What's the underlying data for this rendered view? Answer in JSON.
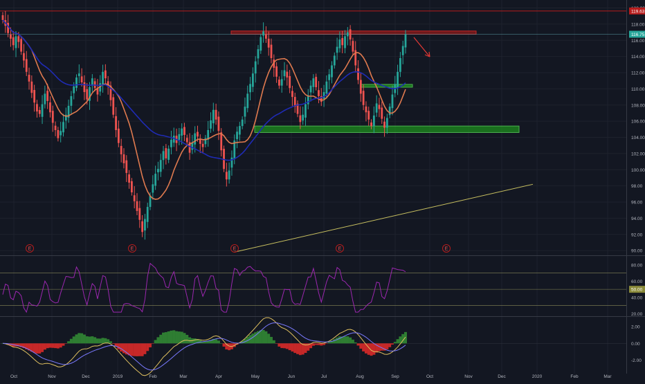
{
  "colors": {
    "background": "#131722",
    "grid": "#1e222d",
    "up": "#26a69a",
    "down": "#ef5350",
    "ma_short": "#e07a4f",
    "ma_long": "#1f2bb5",
    "rsi": "#9c27b0",
    "resistance_fill": "#8b1a1a",
    "support_fill": "#1e8e1e",
    "trendline": "#c8c060",
    "resistance_line": "#b71c1c",
    "arrow": "#e53935",
    "macd_line": "#e0c060",
    "signal_line": "#7a7aff",
    "hist_pos": "#2e7d32",
    "hist_neg": "#c62828"
  },
  "price_badges": {
    "top_label": "119.63",
    "last_label": "116.75"
  },
  "earnings_marker": "E",
  "chart_data": [
    {
      "type": "candlestick",
      "x_axis_labels": [
        "Oct",
        "Nov",
        "Dec",
        "2019",
        "Feb",
        "Mar",
        "Apr",
        "May",
        "Jun",
        "Jul",
        "Aug",
        "Sep",
        "Oct",
        "Nov",
        "Dec",
        "2020",
        "Feb",
        "Mar"
      ],
      "y_ticks": [
        "90.00",
        "92.00",
        "94.00",
        "96.00",
        "98.00",
        "100.00",
        "102.00",
        "104.00",
        "106.00",
        "108.00",
        "110.00",
        "112.00",
        "114.00",
        "116.00",
        "118.00",
        "120.00"
      ],
      "ylim": [
        89.5,
        120.3
      ],
      "resistance_level": 119.63,
      "last_price": 116.75,
      "resistance_zone": [
        116.75,
        117.15
      ],
      "support_zone_lower": [
        104.6,
        105.4
      ],
      "support_zone_upper": [
        110.2,
        110.55
      ],
      "trendline": [
        [
          "Apr 2019",
          89.8
        ],
        [
          "Dec 2019",
          98.2
        ]
      ],
      "closes": [
        118.5,
        117.8,
        116.9,
        116.2,
        115.4,
        116.5,
        115.8,
        114.6,
        113.5,
        112.1,
        110.9,
        109.5,
        108.3,
        107.2,
        106.9,
        108.1,
        109.4,
        108.5,
        107.1,
        105.8,
        104.9,
        103.9,
        104.8,
        105.9,
        106.8,
        107.9,
        109.1,
        110.3,
        111.4,
        111.9,
        110.8,
        109.6,
        108.7,
        110.2,
        111.3,
        110.1,
        109.3,
        110.7,
        112.1,
        111.3,
        110.4,
        108.6,
        106.8,
        104.9,
        103.3,
        101.9,
        100.8,
        99.6,
        98.4,
        97.2,
        96.1,
        94.9,
        93.8,
        92.3,
        93.9,
        95.4,
        96.8,
        98.2,
        99.5,
        100.1,
        101.2,
        102.3,
        101.4,
        102.6,
        103.7,
        104.2,
        103.3,
        104.4,
        105.1,
        104.3,
        103.4,
        102.1,
        103.3,
        104.5,
        104.1,
        103.2,
        102.8,
        103.9,
        104.9,
        106.1,
        107.4,
        106.2,
        104.8,
        102.4,
        100.1,
        98.8,
        99.9,
        101.5,
        103.6,
        104.7,
        105.4,
        106.2,
        107.8,
        109.4,
        110.6,
        111.9,
        113.4,
        114.9,
        116.4,
        117.1,
        116.2,
        115.1,
        113.8,
        112.6,
        111.5,
        110.4,
        111.2,
        112.3,
        111.4,
        110.1,
        109.0,
        107.8,
        106.9,
        105.9,
        106.8,
        108.1,
        109.2,
        110.4,
        111.3,
        110.2,
        109.1,
        108.4,
        109.6,
        110.9,
        111.8,
        112.9,
        114.1,
        115.2,
        116.1,
        115.4,
        116.5,
        117.0,
        116.1,
        114.6,
        112.9,
        111.1,
        109.4,
        108.0,
        107.1,
        106.2,
        105.4,
        106.7,
        108.2,
        107.5,
        106.3,
        105.2,
        106.4,
        107.8,
        109.3,
        110.6,
        112.1,
        113.8,
        115.3,
        116.75
      ]
    },
    {
      "type": "line",
      "name": "RSI",
      "y_ticks": [
        "20.00",
        "40.00",
        "60.00",
        "80.00"
      ],
      "ylim": [
        17,
        90
      ],
      "levels": [
        30,
        50,
        70
      ],
      "level_label": "50.00"
    },
    {
      "type": "bar",
      "name": "MACD",
      "y_ticks": [
        "-2.00",
        "0.00",
        "2.00"
      ],
      "ylim": [
        -3.3,
        3.1
      ]
    }
  ]
}
